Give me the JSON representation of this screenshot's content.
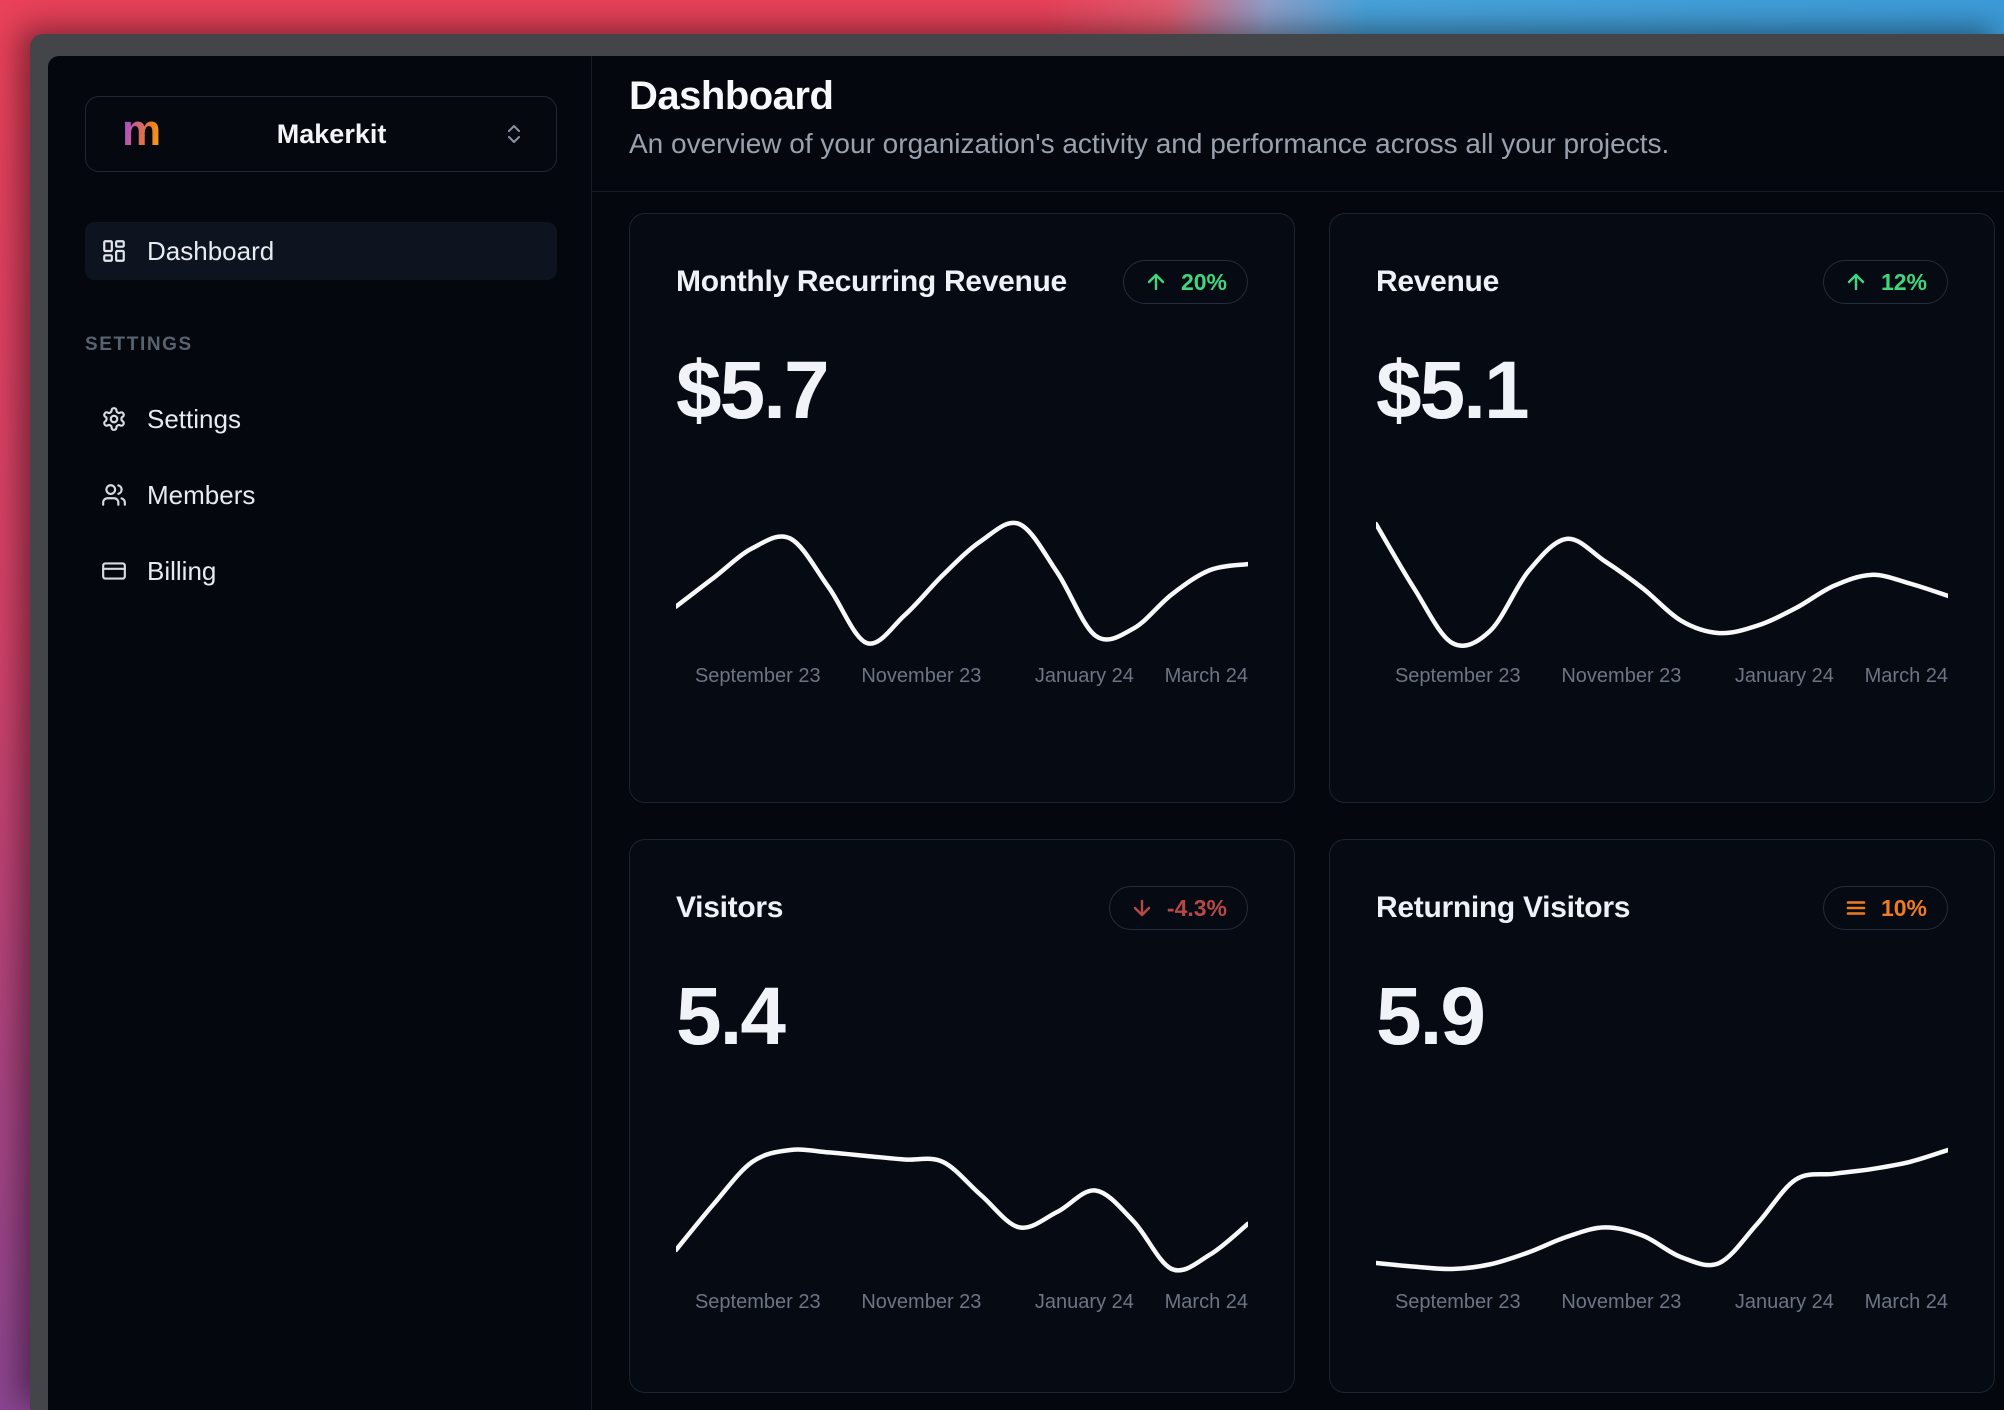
{
  "sidebar": {
    "workspace": {
      "logo_letter": "m",
      "name": "Makerkit"
    },
    "nav": [
      {
        "label": "Dashboard",
        "icon": "layout-dashboard-icon",
        "active": true
      }
    ],
    "section_label": "SETTINGS",
    "settings_nav": [
      {
        "label": "Settings",
        "icon": "gear-icon"
      },
      {
        "label": "Members",
        "icon": "users-icon"
      },
      {
        "label": "Billing",
        "icon": "credit-card-icon"
      }
    ]
  },
  "header": {
    "title": "Dashboard",
    "subtitle": "An overview of your organization's activity and performance across all your projects."
  },
  "cards": [
    {
      "title": "Monthly Recurring Revenue",
      "value": "$5.7",
      "trend": {
        "direction": "up",
        "label": "20%",
        "icon": "arrow-up-icon",
        "color": "#3fd67e"
      }
    },
    {
      "title": "Revenue",
      "value": "$5.1",
      "trend": {
        "direction": "up",
        "label": "12%",
        "icon": "arrow-up-icon",
        "color": "#3fd67e"
      }
    },
    {
      "title": "Visitors",
      "value": "5.4",
      "trend": {
        "direction": "down",
        "label": "-4.3%",
        "icon": "arrow-down-icon",
        "color": "#b94747"
      }
    },
    {
      "title": "Returning Visitors",
      "value": "5.9",
      "trend": {
        "direction": "neutral",
        "label": "10%",
        "icon": "menu-icon",
        "color": "#f07d1d"
      }
    }
  ],
  "chart_data": [
    {
      "type": "line",
      "title": "Monthly Recurring Revenue",
      "x_labels": [
        "September 23",
        "November 23",
        "January 24",
        "March 24"
      ],
      "values": [
        32,
        56,
        80,
        88,
        48,
        2,
        25,
        58,
        86,
        100,
        60,
        8,
        14,
        42,
        62,
        67
      ],
      "value_units": "relative-estimate-0-100",
      "line_color": "#f7f9fb",
      "x_axis": "visible",
      "y_axis": "hidden",
      "grid": false,
      "legend": false
    },
    {
      "type": "line",
      "title": "Revenue",
      "x_labels": [
        "September 23",
        "November 23",
        "January 24",
        "March 24"
      ],
      "values": [
        100,
        48,
        4,
        14,
        62,
        88,
        70,
        48,
        22,
        12,
        18,
        32,
        50,
        59,
        52,
        42
      ],
      "value_units": "relative-estimate-0-100",
      "line_color": "#f7f9fb",
      "x_axis": "visible",
      "y_axis": "hidden",
      "grid": false,
      "legend": false
    },
    {
      "type": "line",
      "title": "Visitors",
      "x_labels": [
        "September 23",
        "November 23",
        "January 24",
        "March 24"
      ],
      "values": [
        16,
        55,
        90,
        100,
        98,
        95,
        92,
        90,
        62,
        35,
        48,
        66,
        40,
        0,
        12,
        38
      ],
      "value_units": "relative-estimate-0-100",
      "line_color": "#f7f9fb",
      "x_axis": "visible",
      "y_axis": "hidden",
      "grid": false,
      "legend": false
    },
    {
      "type": "line",
      "title": "Returning Visitors",
      "x_labels": [
        "September 23",
        "November 23",
        "January 24",
        "March 24"
      ],
      "values": [
        5,
        2,
        0,
        4,
        14,
        27,
        35,
        28,
        10,
        5,
        38,
        75,
        80,
        84,
        90,
        100
      ],
      "value_units": "relative-estimate-0-100",
      "line_color": "#f7f9fb",
      "x_axis": "visible",
      "y_axis": "hidden",
      "grid": false,
      "legend": false
    }
  ],
  "colors": {
    "trend_up_green": "#3fd67e",
    "trend_down_red": "#b94747",
    "trend_neutral_orange": "#f07d1d",
    "app_background": "#04070e",
    "card_background": "#060a12",
    "card_border": "#1c2433",
    "sparkline": "#f7f9fb",
    "muted_text": "#6d7584",
    "window_frame_gray": "#434549",
    "wallpaper_pink": "#e84159",
    "wallpaper_blue": "#3c9bd8",
    "wallpaper_purple": "#8a4590",
    "logo_gradient_start": "#a24ae0",
    "logo_gradient_end": "#f7a21c"
  }
}
